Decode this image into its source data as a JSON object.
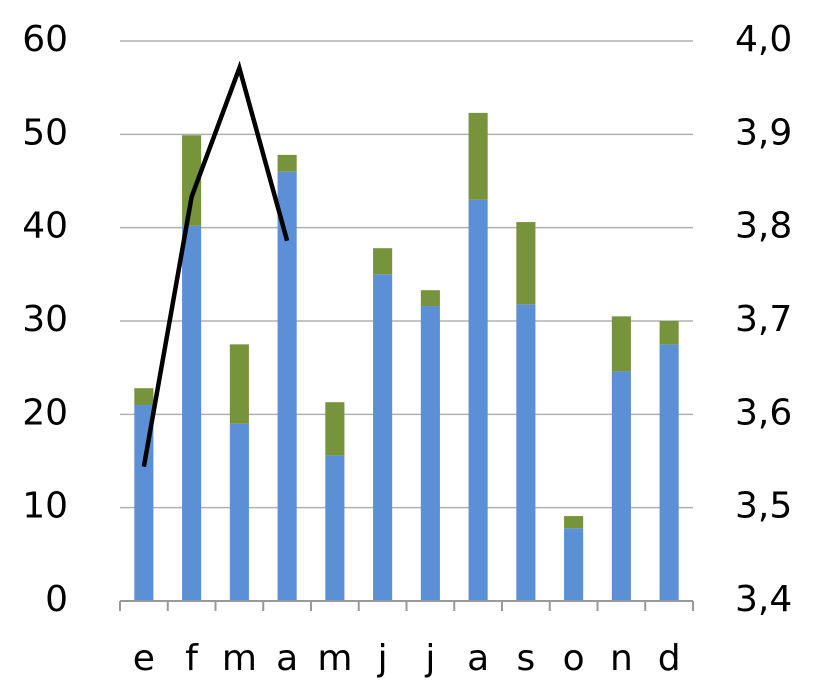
{
  "chart_data": {
    "type": "bar",
    "stacked": true,
    "categories": [
      "e",
      "f",
      "m",
      "a",
      "m",
      "j",
      "j",
      "a",
      "s",
      "o",
      "n",
      "d"
    ],
    "series": [
      {
        "color": "#5b8fd6",
        "values": [
          21,
          40.2,
          19,
          46,
          15.6,
          35,
          31.6,
          43,
          31.8,
          7.8,
          24.6,
          27.5
        ]
      },
      {
        "color": "#77933c",
        "values": [
          1.8,
          9.7,
          8.5,
          1.8,
          5.7,
          2.8,
          1.7,
          9.3,
          8.8,
          1.3,
          5.9,
          2.5
        ]
      },
      {
        "type": "line",
        "axis": "y2",
        "color": "#000000",
        "values": [
          3.544,
          3.833,
          3.971,
          3.786,
          null,
          null,
          null,
          null,
          null,
          null,
          null,
          null
        ]
      }
    ],
    "ylim": [
      0,
      60
    ],
    "yticks": [
      0,
      10,
      20,
      30,
      40,
      50,
      60
    ],
    "y2lim": [
      3.4,
      4.0
    ],
    "y2ticks": [
      {
        "value": 3.4,
        "label": "3,4"
      },
      {
        "value": 3.5,
        "label": "3,5"
      },
      {
        "value": 3.6,
        "label": "3,6"
      },
      {
        "value": 3.7,
        "label": "3,7"
      },
      {
        "value": 3.8,
        "label": "3,8"
      },
      {
        "value": 3.9,
        "label": "3,9"
      },
      {
        "value": 4.0,
        "label": "4,0"
      }
    ],
    "grid": true
  }
}
